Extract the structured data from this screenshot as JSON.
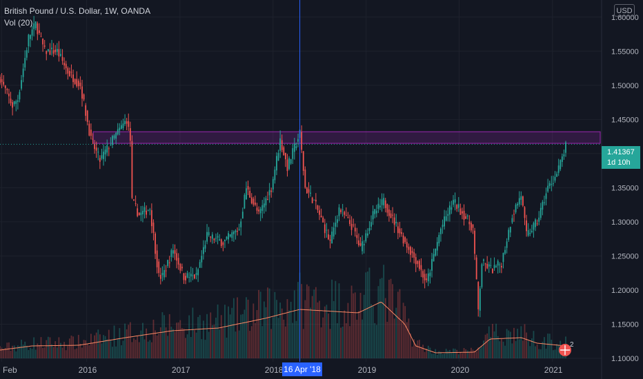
{
  "legend": {
    "symbol": "British Pound / U.S. Dollar, 1W, OANDA",
    "indicator": "Vol (20)"
  },
  "currency_label": "USD",
  "price_tag": {
    "price": "1.41367",
    "countdown": "1d 10h"
  },
  "crosshair_date": "16 Apr '18",
  "alert_badge": "2",
  "colors": {
    "background": "#131722",
    "up": "#26a69a",
    "down": "#ef5350",
    "volume_ma": "#ff8a65",
    "zone": "#9c27b0",
    "crosshair": "#2962ff"
  },
  "chart_data": {
    "type": "candlestick",
    "interval": "1W",
    "y_axis": {
      "range": [
        1.095,
        1.625
      ],
      "ticks": [
        "1.60000",
        "1.55000",
        "1.50000",
        "1.45000",
        "1.40000",
        "1.35000",
        "1.30000",
        "1.25000",
        "1.20000",
        "1.15000",
        "1.10000"
      ]
    },
    "x_axis": {
      "range": [
        "2015-01-26",
        "2021-02-22"
      ],
      "ticks": [
        {
          "label": "Feb",
          "date": "2015-02-01"
        },
        {
          "label": "2016",
          "date": "2016-01-01"
        },
        {
          "label": "2017",
          "date": "2017-01-01"
        },
        {
          "label": "2018",
          "date": "2018-01-01"
        },
        {
          "label": "2019",
          "date": "2019-01-01"
        },
        {
          "label": "2020",
          "date": "2020-01-01"
        },
        {
          "label": "2021",
          "date": "2021-01-01"
        }
      ]
    },
    "resistance_zone": {
      "from": 1.415,
      "to": 1.432
    },
    "last_price": 1.41367,
    "crosshair": {
      "date": "2018-04-16"
    },
    "price_path": [
      [
        "2015-01-26",
        1.51
      ],
      [
        "2015-03-16",
        1.47
      ],
      [
        "2015-04-06",
        1.48
      ],
      [
        "2015-05-18",
        1.57
      ],
      [
        "2015-06-15",
        1.59
      ],
      [
        "2015-07-20",
        1.55
      ],
      [
        "2015-09-07",
        1.55
      ],
      [
        "2015-10-19",
        1.52
      ],
      [
        "2015-12-07",
        1.5
      ],
      [
        "2016-01-18",
        1.42
      ],
      [
        "2016-02-22",
        1.39
      ],
      [
        "2016-04-11",
        1.42
      ],
      [
        "2016-06-06",
        1.45
      ],
      [
        "2016-06-20",
        1.42
      ],
      [
        "2016-06-27",
        1.33
      ],
      [
        "2016-07-25",
        1.31
      ],
      [
        "2016-09-05",
        1.32
      ],
      [
        "2016-10-10",
        1.22
      ],
      [
        "2016-10-24",
        1.22
      ],
      [
        "2016-12-05",
        1.26
      ],
      [
        "2017-01-16",
        1.22
      ],
      [
        "2017-03-06",
        1.22
      ],
      [
        "2017-04-17",
        1.28
      ],
      [
        "2017-06-19",
        1.27
      ],
      [
        "2017-08-21",
        1.29
      ],
      [
        "2017-09-18",
        1.35
      ],
      [
        "2017-11-06",
        1.31
      ],
      [
        "2017-12-25",
        1.35
      ],
      [
        "2018-01-29",
        1.42
      ],
      [
        "2018-02-26",
        1.38
      ],
      [
        "2018-04-16",
        1.43
      ],
      [
        "2018-05-07",
        1.35
      ],
      [
        "2018-06-11",
        1.33
      ],
      [
        "2018-08-13",
        1.27
      ],
      [
        "2018-09-17",
        1.32
      ],
      [
        "2018-11-12",
        1.29
      ],
      [
        "2018-12-10",
        1.26
      ],
      [
        "2019-01-28",
        1.31
      ],
      [
        "2019-03-11",
        1.33
      ],
      [
        "2019-04-22",
        1.3
      ],
      [
        "2019-06-03",
        1.27
      ],
      [
        "2019-07-22",
        1.24
      ],
      [
        "2019-08-26",
        1.21
      ],
      [
        "2019-09-16",
        1.24
      ],
      [
        "2019-10-21",
        1.29
      ],
      [
        "2019-12-09",
        1.33
      ],
      [
        "2020-01-20",
        1.31
      ],
      [
        "2020-02-24",
        1.29
      ],
      [
        "2020-03-16",
        1.17
      ],
      [
        "2020-03-30",
        1.24
      ],
      [
        "2020-05-11",
        1.23
      ],
      [
        "2020-06-15",
        1.24
      ],
      [
        "2020-07-27",
        1.31
      ],
      [
        "2020-08-31",
        1.34
      ],
      [
        "2020-09-21",
        1.28
      ],
      [
        "2020-11-02",
        1.3
      ],
      [
        "2020-12-14",
        1.35
      ],
      [
        "2021-01-18",
        1.37
      ],
      [
        "2021-02-22",
        1.41
      ]
    ],
    "volume_ma_path": [
      [
        "2015-01-26",
        0.012
      ],
      [
        "2015-06-01",
        0.018
      ],
      [
        "2015-12-01",
        0.019
      ],
      [
        "2016-06-01",
        0.03
      ],
      [
        "2016-12-01",
        0.04
      ],
      [
        "2017-06-01",
        0.044
      ],
      [
        "2017-12-01",
        0.058
      ],
      [
        "2018-04-16",
        0.071
      ],
      [
        "2018-09-01",
        0.068
      ],
      [
        "2018-12-01",
        0.066
      ],
      [
        "2019-03-01",
        0.082
      ],
      [
        "2019-06-01",
        0.05
      ],
      [
        "2019-07-15",
        0.018
      ],
      [
        "2019-10-01",
        0.008
      ],
      [
        "2020-03-01",
        0.009
      ],
      [
        "2020-05-01",
        0.028
      ],
      [
        "2020-09-01",
        0.03
      ],
      [
        "2020-11-01",
        0.022
      ],
      [
        "2021-02-22",
        0.018
      ]
    ]
  }
}
